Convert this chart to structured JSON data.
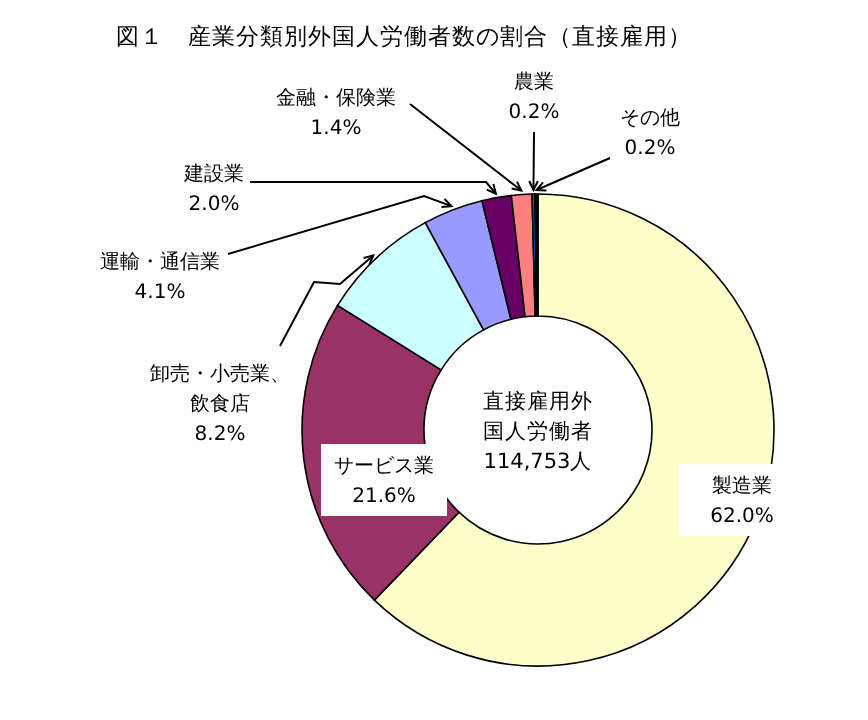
{
  "chart_data": {
    "type": "donut",
    "title": "図１　産業分類別外国人労働者数の割合（直接雇用）",
    "categories": [
      "製造業",
      "サービス業",
      "卸売・小売業、飲食店",
      "運輸・通信業",
      "建設業",
      "金融・保険業",
      "農業",
      "その他"
    ],
    "values": [
      62.0,
      21.6,
      8.2,
      4.1,
      2.0,
      1.4,
      0.2,
      0.2
    ],
    "colors": [
      "#ffffcc",
      "#993366",
      "#ccffff",
      "#9999ff",
      "#660066",
      "#ff8080",
      "#0066cc",
      "#000000"
    ],
    "value_labels": [
      "62.0%",
      "21.6%",
      "8.2%",
      "4.1%",
      "2.0%",
      "1.4%",
      "0.2%",
      "0.2%"
    ],
    "annotations": [
      "直接雇用外国人労働者114,753人"
    ]
  }
}
